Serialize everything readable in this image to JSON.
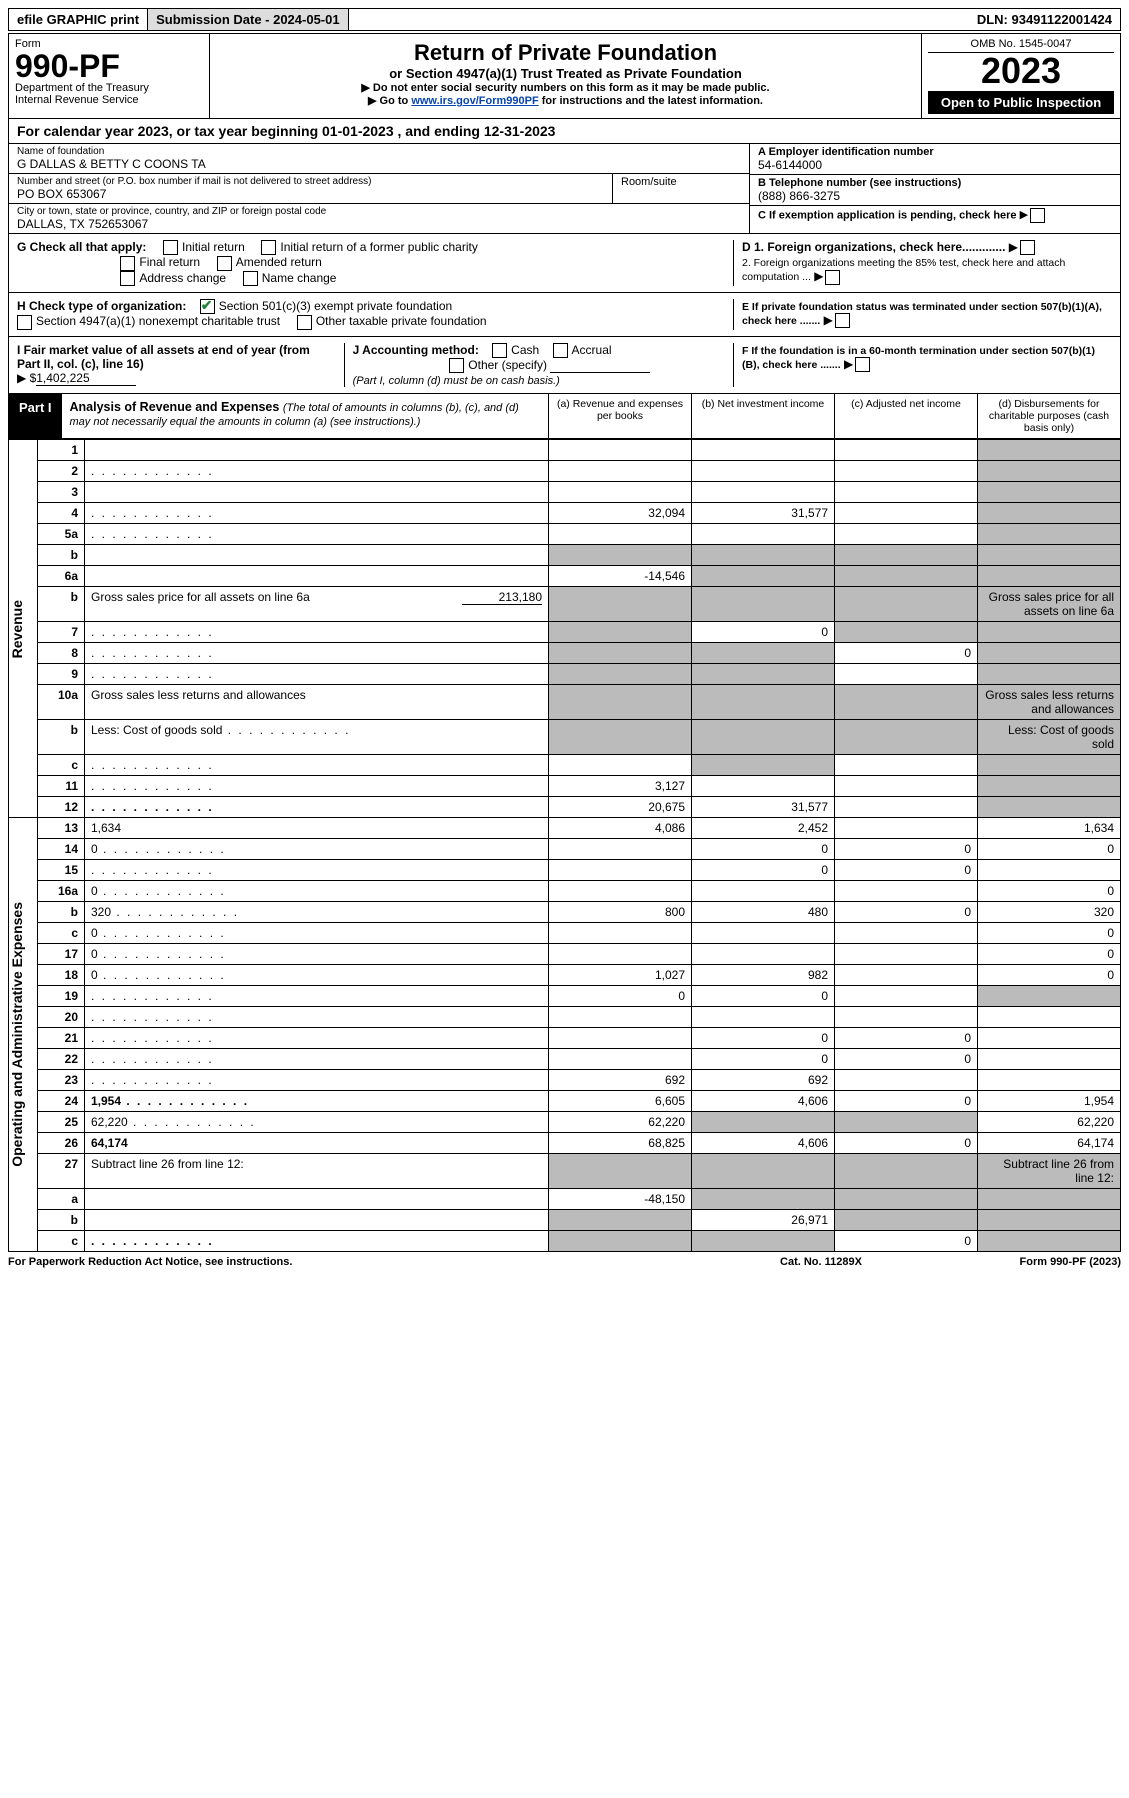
{
  "topbar": {
    "efile": "efile GRAPHIC print",
    "sub_label": "Submission Date - 2024-05-01",
    "dln_label": "DLN: 93491122001424"
  },
  "header": {
    "form_label": "Form",
    "form_number": "990-PF",
    "dept": "Department of the Treasury",
    "irs": "Internal Revenue Service",
    "title": "Return of Private Foundation",
    "subtitle": "or Section 4947(a)(1) Trust Treated as Private Foundation",
    "instr1": "▶ Do not enter social security numbers on this form as it may be made public.",
    "instr2_pre": "▶ Go to ",
    "instr2_link": "www.irs.gov/Form990PF",
    "instr2_post": " for instructions and the latest information.",
    "omb": "OMB No. 1545-0047",
    "year": "2023",
    "open": "Open to Public Inspection"
  },
  "cal_year": "For calendar year 2023, or tax year beginning 01-01-2023                                 , and ending 12-31-2023",
  "info": {
    "name_label": "Name of foundation",
    "name": "G DALLAS & BETTY C COONS TA",
    "addr_label": "Number and street (or P.O. box number if mail is not delivered to street address)",
    "room_label": "Room/suite",
    "addr": "PO BOX 653067",
    "city_label": "City or town, state or province, country, and ZIP or foreign postal code",
    "city": "DALLAS, TX  752653067",
    "a_label": "A Employer identification number",
    "a_val": "54-6144000",
    "b_label": "B Telephone number (see instructions)",
    "b_val": "(888) 866-3275",
    "c_label": "C If exemption application is pending, check here"
  },
  "g_section": {
    "label": "G Check all that apply:",
    "opts": [
      "Initial return",
      "Initial return of a former public charity",
      "Final return",
      "Amended return",
      "Address change",
      "Name change"
    ]
  },
  "h_section": {
    "label": "H Check type of organization:",
    "opt1": "Section 501(c)(3) exempt private foundation",
    "opt2": "Section 4947(a)(1) nonexempt charitable trust",
    "opt3": "Other taxable private foundation"
  },
  "i_section": {
    "label": "I Fair market value of all assets at end of year (from Part II, col. (c), line 16)",
    "val_pre": "▶ $",
    "val": "1,402,225"
  },
  "j_section": {
    "label": "J Accounting method:",
    "opts": [
      "Cash",
      "Accrual",
      "Other (specify)"
    ],
    "note": "(Part I, column (d) must be on cash basis.)"
  },
  "d_section": {
    "d1": "D 1. Foreign organizations, check here.............",
    "d2": "2. Foreign organizations meeting the 85% test, check here and attach computation ...",
    "e": "E If private foundation status was terminated under section 507(b)(1)(A), check here .......",
    "f": "F If the foundation is in a 60-month termination under section 507(b)(1)(B), check here ......."
  },
  "part1": {
    "label": "Part I",
    "title": "Analysis of Revenue and Expenses",
    "sub": "(The total of amounts in columns (b), (c), and (d) may not necessarily equal the amounts in column (a) (see instructions).)",
    "cols": {
      "a": "(a) Revenue and expenses per books",
      "b": "(b) Net investment income",
      "c": "(c) Adjusted net income",
      "d": "(d) Disbursements for charitable purposes (cash basis only)"
    }
  },
  "side_labels": {
    "revenue": "Revenue",
    "expenses": "Operating and Administrative Expenses"
  },
  "rows": [
    {
      "n": "1",
      "d": "",
      "a": "",
      "b": "",
      "c": "",
      "grey_d": true
    },
    {
      "n": "2",
      "d": "",
      "a": "",
      "b": "",
      "c": "",
      "grey_all": false,
      "dots": true,
      "grey_d": true
    },
    {
      "n": "3",
      "d": "",
      "a": "",
      "b": "",
      "c": "",
      "grey_d": true
    },
    {
      "n": "4",
      "d": "",
      "dots": true,
      "a": "32,094",
      "b": "31,577",
      "c": "",
      "grey_d": true
    },
    {
      "n": "5a",
      "d": "",
      "dots": true,
      "a": "",
      "b": "",
      "c": "",
      "grey_d": true
    },
    {
      "n": "b",
      "d": "",
      "a": "",
      "b": "",
      "c": "",
      "grey_abcd": true
    },
    {
      "n": "6a",
      "d": "",
      "a": "-14,546",
      "b": "",
      "c": "",
      "grey_bcd": true
    },
    {
      "n": "b",
      "d": "Gross sales price for all assets on line 6a",
      "inline_val": "213,180",
      "grey_abcd": true
    },
    {
      "n": "7",
      "d": "",
      "dots": true,
      "a": "",
      "b": "0",
      "c": "",
      "grey_a": true,
      "grey_cd": true
    },
    {
      "n": "8",
      "d": "",
      "dots": true,
      "a": "",
      "b": "",
      "c": "0",
      "grey_ab": true,
      "grey_d": true
    },
    {
      "n": "9",
      "d": "",
      "dots": true,
      "a": "",
      "b": "",
      "c": "",
      "grey_ab": true,
      "grey_d": true
    },
    {
      "n": "10a",
      "d": "Gross sales less returns and allowances",
      "grey_abcd": true
    },
    {
      "n": "b",
      "d": "Less: Cost of goods sold",
      "dots": true,
      "grey_abcd": true
    },
    {
      "n": "c",
      "d": "",
      "dots": true,
      "a": "",
      "b": "",
      "c": "",
      "grey_b": true,
      "grey_d": true
    },
    {
      "n": "11",
      "d": "",
      "dots": true,
      "a": "3,127",
      "b": "",
      "c": "",
      "grey_d": true
    },
    {
      "n": "12",
      "d": "",
      "bold": true,
      "dots": true,
      "a": "20,675",
      "b": "31,577",
      "c": "",
      "grey_d": true
    }
  ],
  "exp_rows": [
    {
      "n": "13",
      "d": "1,634",
      "a": "4,086",
      "b": "2,452",
      "c": ""
    },
    {
      "n": "14",
      "d": "0",
      "dots": true,
      "a": "",
      "b": "0",
      "c": "0"
    },
    {
      "n": "15",
      "d": "",
      "dots": true,
      "a": "",
      "b": "0",
      "c": "0"
    },
    {
      "n": "16a",
      "d": "0",
      "dots": true,
      "a": "",
      "b": "",
      "c": ""
    },
    {
      "n": "b",
      "d": "320",
      "dots": true,
      "a": "800",
      "b": "480",
      "c": "0"
    },
    {
      "n": "c",
      "d": "0",
      "dots": true,
      "a": "",
      "b": "",
      "c": ""
    },
    {
      "n": "17",
      "d": "0",
      "dots": true,
      "a": "",
      "b": "",
      "c": ""
    },
    {
      "n": "18",
      "d": "0",
      "dots": true,
      "a": "1,027",
      "b": "982",
      "c": ""
    },
    {
      "n": "19",
      "d": "",
      "dots": true,
      "a": "0",
      "b": "0",
      "c": "",
      "grey_d": true
    },
    {
      "n": "20",
      "d": "",
      "dots": true,
      "a": "",
      "b": "",
      "c": ""
    },
    {
      "n": "21",
      "d": "",
      "dots": true,
      "a": "",
      "b": "0",
      "c": "0"
    },
    {
      "n": "22",
      "d": "",
      "dots": true,
      "a": "",
      "b": "0",
      "c": "0"
    },
    {
      "n": "23",
      "d": "",
      "dots": true,
      "a": "692",
      "b": "692",
      "c": ""
    },
    {
      "n": "24",
      "d": "1,954",
      "bold": true,
      "dots": true,
      "a": "6,605",
      "b": "4,606",
      "c": "0"
    },
    {
      "n": "25",
      "d": "62,220",
      "dots": true,
      "a": "62,220",
      "b": "",
      "c": "",
      "grey_bc": true
    },
    {
      "n": "26",
      "d": "64,174",
      "bold": true,
      "a": "68,825",
      "b": "4,606",
      "c": "0"
    },
    {
      "n": "27",
      "d": "Subtract line 26 from line 12:",
      "grey_abcd": true
    },
    {
      "n": "a",
      "d": "",
      "bold": true,
      "a": "-48,150",
      "b": "",
      "c": "",
      "grey_bcd": true
    },
    {
      "n": "b",
      "d": "",
      "bold": true,
      "a": "",
      "b": "26,971",
      "c": "",
      "grey_a": true,
      "grey_cd": true
    },
    {
      "n": "c",
      "d": "",
      "bold": true,
      "dots": true,
      "a": "",
      "b": "",
      "c": "0",
      "grey_ab": true,
      "grey_d": true
    }
  ],
  "footer": {
    "left": "For Paperwork Reduction Act Notice, see instructions.",
    "mid": "Cat. No. 11289X",
    "right": "Form 990-PF (2023)"
  }
}
